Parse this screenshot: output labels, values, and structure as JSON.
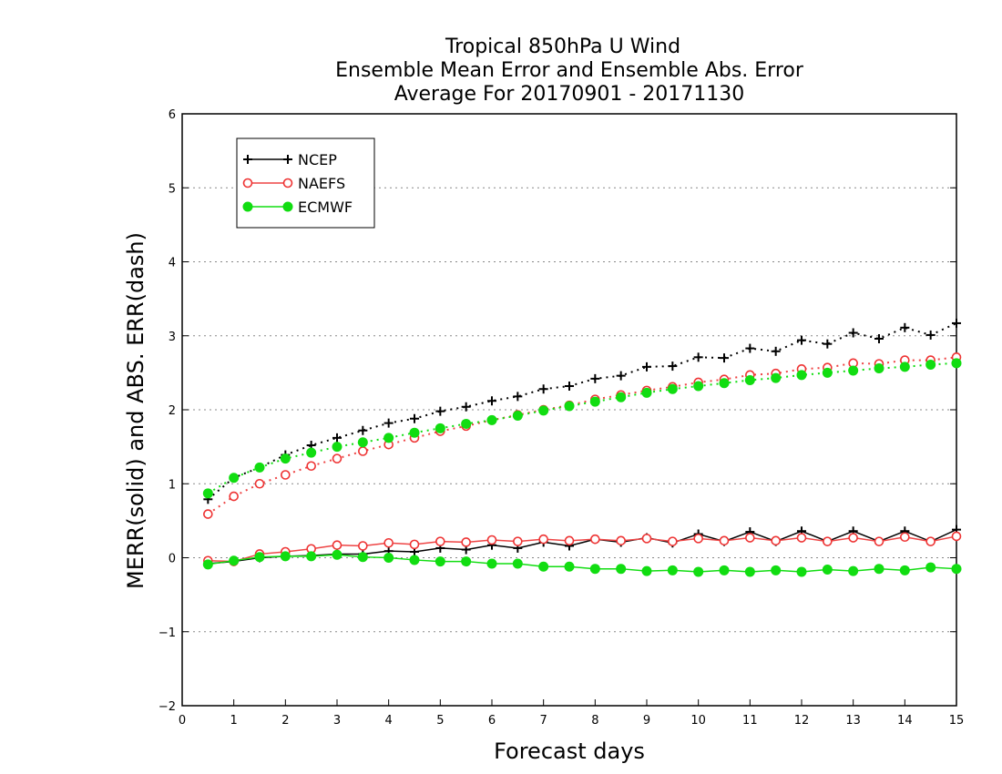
{
  "chart_data": {
    "type": "line",
    "title_lines": [
      "Tropical 850hPa U Wind",
      "Ensemble Mean Error and Ensemble Abs. Error",
      "Average For 20170901 - 20171130"
    ],
    "xlabel": "Forecast days",
    "ylabel": "MERR(solid) and ABS. ERR(dash)",
    "xlim": [
      0,
      15
    ],
    "ylim": [
      -2,
      6
    ],
    "x_ticks": [
      "0",
      "1",
      "2",
      "3",
      "4",
      "5",
      "6",
      "7",
      "8",
      "9",
      "10",
      "11",
      "12",
      "13",
      "14",
      "15"
    ],
    "y_ticks": [
      "−2",
      "−1",
      "0",
      "1",
      "2",
      "3",
      "4",
      "5",
      "6"
    ],
    "grid": "horizontal dotted",
    "legend_position": "top-left",
    "x": [
      0.5,
      1,
      1.5,
      2,
      2.5,
      3,
      3.5,
      4,
      4.5,
      5,
      5.5,
      6,
      6.5,
      7,
      7.5,
      8,
      8.5,
      9,
      9.5,
      10,
      10.5,
      11,
      11.5,
      12,
      12.5,
      13,
      13.5,
      14,
      14.5,
      15
    ],
    "series": [
      {
        "name": "NCEP",
        "color": "#000000",
        "marker": "plus",
        "merr": [
          -0.08,
          -0.05,
          0.0,
          0.02,
          0.03,
          0.05,
          0.05,
          0.09,
          0.08,
          0.13,
          0.11,
          0.17,
          0.13,
          0.21,
          0.16,
          0.25,
          0.21,
          0.27,
          0.2,
          0.32,
          0.22,
          0.35,
          0.22,
          0.36,
          0.22,
          0.36,
          0.22,
          0.36,
          0.22,
          0.38
        ],
        "abs_err": [
          0.79,
          1.08,
          1.22,
          1.39,
          1.52,
          1.62,
          1.72,
          1.82,
          1.88,
          1.98,
          2.04,
          2.12,
          2.18,
          2.28,
          2.32,
          2.42,
          2.46,
          2.58,
          2.59,
          2.71,
          2.7,
          2.83,
          2.79,
          2.94,
          2.89,
          3.04,
          2.96,
          3.11,
          3.01,
          3.17
        ]
      },
      {
        "name": "NAEFS",
        "color": "#ee3333",
        "marker": "open-circle",
        "merr": [
          -0.04,
          -0.05,
          0.05,
          0.08,
          0.12,
          0.17,
          0.16,
          0.2,
          0.18,
          0.22,
          0.21,
          0.24,
          0.22,
          0.25,
          0.23,
          0.25,
          0.23,
          0.26,
          0.22,
          0.26,
          0.23,
          0.27,
          0.23,
          0.27,
          0.22,
          0.27,
          0.22,
          0.28,
          0.22,
          0.29
        ],
        "abs_err": [
          0.59,
          0.83,
          1.0,
          1.12,
          1.24,
          1.34,
          1.44,
          1.53,
          1.62,
          1.71,
          1.78,
          1.86,
          1.93,
          2.0,
          2.06,
          2.14,
          2.2,
          2.26,
          2.31,
          2.37,
          2.41,
          2.47,
          2.49,
          2.55,
          2.57,
          2.63,
          2.62,
          2.67,
          2.67,
          2.71
        ]
      },
      {
        "name": "ECMWF",
        "color": "#11dd11",
        "marker": "filled-circle",
        "merr": [
          -0.09,
          -0.04,
          0.01,
          0.02,
          0.02,
          0.04,
          0.01,
          0.0,
          -0.03,
          -0.05,
          -0.05,
          -0.08,
          -0.08,
          -0.12,
          -0.12,
          -0.15,
          -0.15,
          -0.18,
          -0.17,
          -0.19,
          -0.17,
          -0.19,
          -0.17,
          -0.19,
          -0.16,
          -0.18,
          -0.15,
          -0.17,
          -0.13,
          -0.15
        ],
        "abs_err": [
          0.87,
          1.08,
          1.22,
          1.34,
          1.42,
          1.5,
          1.56,
          1.62,
          1.69,
          1.75,
          1.81,
          1.86,
          1.92,
          1.99,
          2.05,
          2.11,
          2.17,
          2.23,
          2.28,
          2.32,
          2.36,
          2.4,
          2.43,
          2.47,
          2.5,
          2.53,
          2.56,
          2.58,
          2.61,
          2.63
        ]
      }
    ]
  }
}
